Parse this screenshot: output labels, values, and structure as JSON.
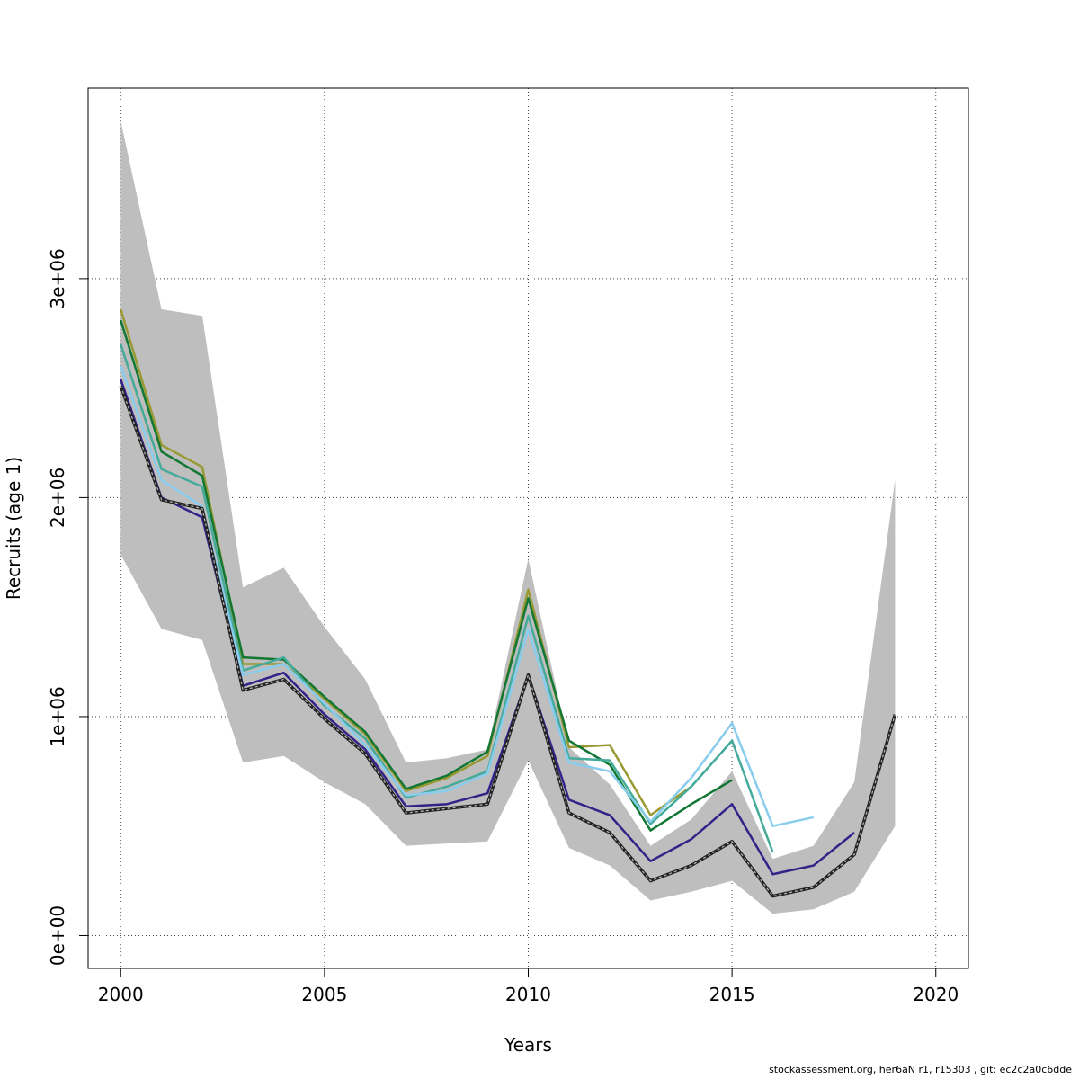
{
  "chart_data": {
    "type": "line",
    "title": "",
    "xlabel": "Years",
    "ylabel": "Recruits (age 1)",
    "xlim": [
      1999.2,
      2020.8
    ],
    "ylim": [
      -150000,
      3870000
    ],
    "x_ticks": [
      2000,
      2005,
      2010,
      2015,
      2020
    ],
    "x_tick_labels": [
      "2000",
      "2005",
      "2010",
      "2015",
      "2020"
    ],
    "y_ticks": [
      0,
      1000000,
      2000000,
      3000000
    ],
    "y_tick_labels": [
      "0e+00",
      "1e+06",
      "2e+06",
      "3e+06"
    ],
    "grid": true,
    "confidence_band": {
      "color": "#bebebe",
      "x": [
        2000,
        2001,
        2002,
        2003,
        2004,
        2005,
        2006,
        2007,
        2008,
        2009,
        2010,
        2011,
        2012,
        2013,
        2014,
        2015,
        2016,
        2017,
        2018,
        2019
      ],
      "lower": [
        1740000,
        1400000,
        1350000,
        790000,
        820000,
        700000,
        600000,
        410000,
        420000,
        430000,
        800000,
        400000,
        320000,
        160000,
        200000,
        250000,
        100000,
        120000,
        200000,
        500000
      ],
      "upper": [
        3720000,
        2860000,
        2830000,
        1590000,
        1680000,
        1410000,
        1170000,
        790000,
        810000,
        850000,
        1720000,
        860000,
        690000,
        410000,
        530000,
        750000,
        350000,
        410000,
        700000,
        2080000
      ]
    },
    "series": [
      {
        "color": "#999933",
        "dash": false,
        "x": [
          2000,
          2001,
          2002,
          2003,
          2004,
          2005,
          2006,
          2007,
          2008,
          2009,
          2010,
          2011,
          2012,
          2013,
          2014
        ],
        "y": [
          2860000,
          2240000,
          2140000,
          1240000,
          1240000,
          1080000,
          920000,
          660000,
          720000,
          820000,
          1580000,
          860000,
          870000,
          550000,
          680000
        ]
      },
      {
        "color": "#117733",
        "dash": false,
        "x": [
          2000,
          2001,
          2002,
          2003,
          2004,
          2005,
          2006,
          2007,
          2008,
          2009,
          2010,
          2011,
          2012,
          2013,
          2014,
          2015
        ],
        "y": [
          2810000,
          2210000,
          2100000,
          1270000,
          1260000,
          1090000,
          930000,
          670000,
          730000,
          840000,
          1540000,
          890000,
          780000,
          480000,
          600000,
          710000
        ]
      },
      {
        "color": "#44aa99",
        "dash": false,
        "x": [
          2000,
          2001,
          2002,
          2003,
          2004,
          2005,
          2006,
          2007,
          2008,
          2009,
          2010,
          2011,
          2012,
          2013,
          2014,
          2015,
          2016
        ],
        "y": [
          2700000,
          2130000,
          2050000,
          1210000,
          1270000,
          1050000,
          900000,
          630000,
          680000,
          750000,
          1460000,
          810000,
          800000,
          510000,
          680000,
          890000,
          380000
        ]
      },
      {
        "color": "#88ccee",
        "dash": false,
        "x": [
          2000,
          2001,
          2002,
          2003,
          2004,
          2005,
          2006,
          2007,
          2008,
          2009,
          2010,
          2011,
          2012,
          2013,
          2014,
          2015,
          2016,
          2017
        ],
        "y": [
          2600000,
          2080000,
          1960000,
          1190000,
          1240000,
          1060000,
          870000,
          640000,
          660000,
          740000,
          1400000,
          790000,
          750000,
          520000,
          720000,
          970000,
          500000,
          540000
        ]
      },
      {
        "color": "#332288",
        "dash": false,
        "x": [
          2000,
          2001,
          2002,
          2003,
          2004,
          2005,
          2006,
          2007,
          2008,
          2009,
          2010,
          2011,
          2012,
          2013,
          2014,
          2015,
          2016,
          2017,
          2018
        ],
        "y": [
          2540000,
          2000000,
          1910000,
          1140000,
          1200000,
          1010000,
          850000,
          590000,
          600000,
          650000,
          1190000,
          620000,
          550000,
          340000,
          440000,
          600000,
          280000,
          320000,
          470000
        ]
      },
      {
        "color": "#222222",
        "dash": true,
        "x": [
          2000,
          2001,
          2002,
          2003,
          2004,
          2005,
          2006,
          2007,
          2008,
          2009,
          2010,
          2011,
          2012,
          2013,
          2014,
          2015,
          2016,
          2017,
          2018,
          2019
        ],
        "y": [
          2510000,
          1990000,
          1950000,
          1120000,
          1170000,
          990000,
          830000,
          560000,
          580000,
          600000,
          1190000,
          560000,
          470000,
          250000,
          320000,
          430000,
          180000,
          220000,
          370000,
          1010000
        ]
      }
    ]
  },
  "footer": {
    "text": "stockassessment.org, her6aN  r1, r15303 , git: ec2c2a0c6dde"
  }
}
